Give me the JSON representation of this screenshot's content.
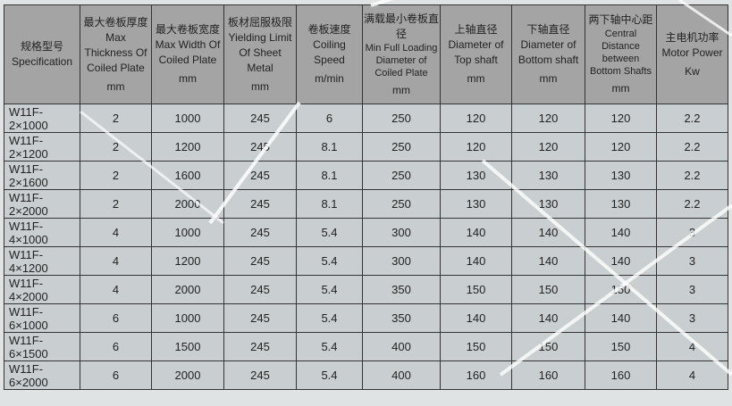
{
  "headers": [
    {
      "cn": "规格型号",
      "en": "Specification",
      "unit": ""
    },
    {
      "cn": "最大卷板厚度",
      "en": "Max Thickness Of Coiled Plate",
      "unit": "mm"
    },
    {
      "cn": "最大卷板宽度",
      "en": "Max Width Of Coiled Plate",
      "unit": "mm"
    },
    {
      "cn": "板材屈服极限",
      "en": "Yielding Limit Of Sheet Metal",
      "unit": "mm"
    },
    {
      "cn": "卷板速度",
      "en": "Coiling Speed",
      "unit": "m/min"
    },
    {
      "cn": "满载最小卷板直径",
      "en": "Min Full Loading Diameter of Coiled Plate",
      "unit": "mm"
    },
    {
      "cn": "上轴直径",
      "en": "Diameter of Top shaft",
      "unit": "mm"
    },
    {
      "cn": "下轴直径",
      "en": "Diameter of Bottom shaft",
      "unit": "mm"
    },
    {
      "cn": "两下轴中心距",
      "en": "Central Distance between Bottom Shafts",
      "unit": "mm"
    },
    {
      "cn": "主电机功率",
      "en": "Motor Power",
      "unit": "Kw"
    }
  ],
  "rows": [
    [
      "W11F-2×1000",
      "2",
      "1000",
      "245",
      "6",
      "250",
      "120",
      "120",
      "120",
      "2.2"
    ],
    [
      "W11F-2×1200",
      "2",
      "1200",
      "245",
      "8.1",
      "250",
      "120",
      "120",
      "120",
      "2.2"
    ],
    [
      "W11F-2×1600",
      "2",
      "1600",
      "245",
      "8.1",
      "250",
      "130",
      "130",
      "130",
      "2.2"
    ],
    [
      "W11F-2×2000",
      "2",
      "2000",
      "245",
      "8.1",
      "250",
      "130",
      "130",
      "130",
      "2.2"
    ],
    [
      "W11F-4×1000",
      "4",
      "1000",
      "245",
      "5.4",
      "300",
      "140",
      "140",
      "140",
      "3"
    ],
    [
      "W11F-4×1200",
      "4",
      "1200",
      "245",
      "5.4",
      "300",
      "140",
      "140",
      "140",
      "3"
    ],
    [
      "W11F-4×2000",
      "4",
      "2000",
      "245",
      "5.4",
      "350",
      "150",
      "150",
      "150",
      "3"
    ],
    [
      "W11F-6×1000",
      "6",
      "1000",
      "245",
      "5.4",
      "350",
      "140",
      "140",
      "140",
      "3"
    ],
    [
      "W11F-6×1500",
      "6",
      "1500",
      "245",
      "5.4",
      "400",
      "150",
      "150",
      "150",
      "4"
    ],
    [
      "W11F-6×2000",
      "6",
      "2000",
      "245",
      "5.4",
      "400",
      "160",
      "160",
      "160",
      "4"
    ]
  ],
  "colors": {
    "header_bg": "#a4a4a4",
    "cell_bg": "#c9cfd0",
    "border": "#333333"
  }
}
